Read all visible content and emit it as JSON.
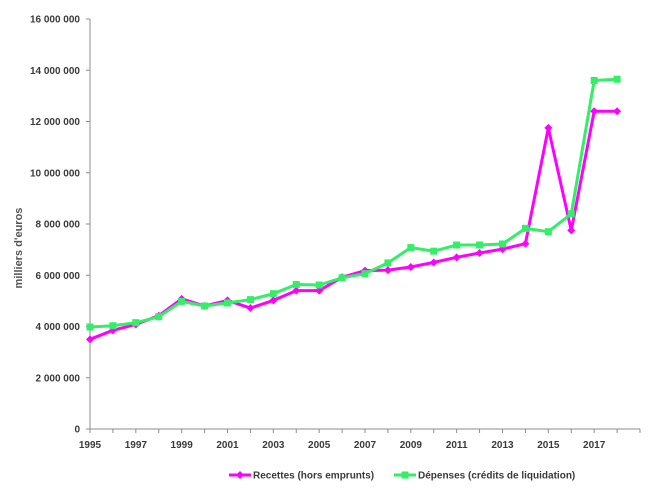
{
  "chart_data": {
    "type": "line",
    "title": "",
    "xlabel": "",
    "ylabel": "milliers d'euros",
    "x": [
      1995,
      1996,
      1997,
      1998,
      1999,
      2000,
      2001,
      2002,
      2003,
      2004,
      2005,
      2006,
      2007,
      2008,
      2009,
      2010,
      2011,
      2012,
      2013,
      2014,
      2015,
      2016,
      2017,
      2018
    ],
    "ylim": [
      0,
      16000000
    ],
    "xlim": [
      1995,
      2019
    ],
    "y_ticks": [
      {
        "value": 0,
        "label": "0"
      },
      {
        "value": 2000000,
        "label": "2 000 000"
      },
      {
        "value": 4000000,
        "label": "4 000 000"
      },
      {
        "value": 6000000,
        "label": "6 000 000"
      },
      {
        "value": 8000000,
        "label": "8 000 000"
      },
      {
        "value": 10000000,
        "label": "10 000 000"
      },
      {
        "value": 12000000,
        "label": "12 000 000"
      },
      {
        "value": 14000000,
        "label": "14 000 000"
      },
      {
        "value": 16000000,
        "label": "16 000 000"
      }
    ],
    "x_ticks": [
      {
        "value": 1995,
        "label": "1995"
      },
      {
        "value": 1997,
        "label": "1997"
      },
      {
        "value": 1999,
        "label": "1999"
      },
      {
        "value": 2001,
        "label": "2001"
      },
      {
        "value": 2003,
        "label": "2003"
      },
      {
        "value": 2005,
        "label": "2005"
      },
      {
        "value": 2007,
        "label": "2007"
      },
      {
        "value": 2009,
        "label": "2009"
      },
      {
        "value": 2011,
        "label": "2011"
      },
      {
        "value": 2013,
        "label": "2013"
      },
      {
        "value": 2015,
        "label": "2015"
      },
      {
        "value": 2017,
        "label": "2017"
      }
    ],
    "grid": false,
    "legend_position": "bottom",
    "series": [
      {
        "name": "Recettes (hors emprunts)",
        "color": "#ff00ff",
        "marker": "diamond",
        "values": [
          3500000,
          3850000,
          4080000,
          4420000,
          5080000,
          4800000,
          5020000,
          4720000,
          5020000,
          5400000,
          5400000,
          5920000,
          6180000,
          6200000,
          6320000,
          6500000,
          6700000,
          6870000,
          7020000,
          7230000,
          11750000,
          7750000,
          12400000,
          12400000
        ]
      },
      {
        "name": "Dépenses (crédits de liquidation)",
        "color": "#33ee66",
        "marker": "square",
        "values": [
          3980000,
          4030000,
          4150000,
          4380000,
          4980000,
          4800000,
          4920000,
          5050000,
          5280000,
          5640000,
          5620000,
          5900000,
          6060000,
          6480000,
          7080000,
          6940000,
          7180000,
          7180000,
          7220000,
          7830000,
          7700000,
          8400000,
          13600000,
          13650000
        ]
      }
    ]
  }
}
